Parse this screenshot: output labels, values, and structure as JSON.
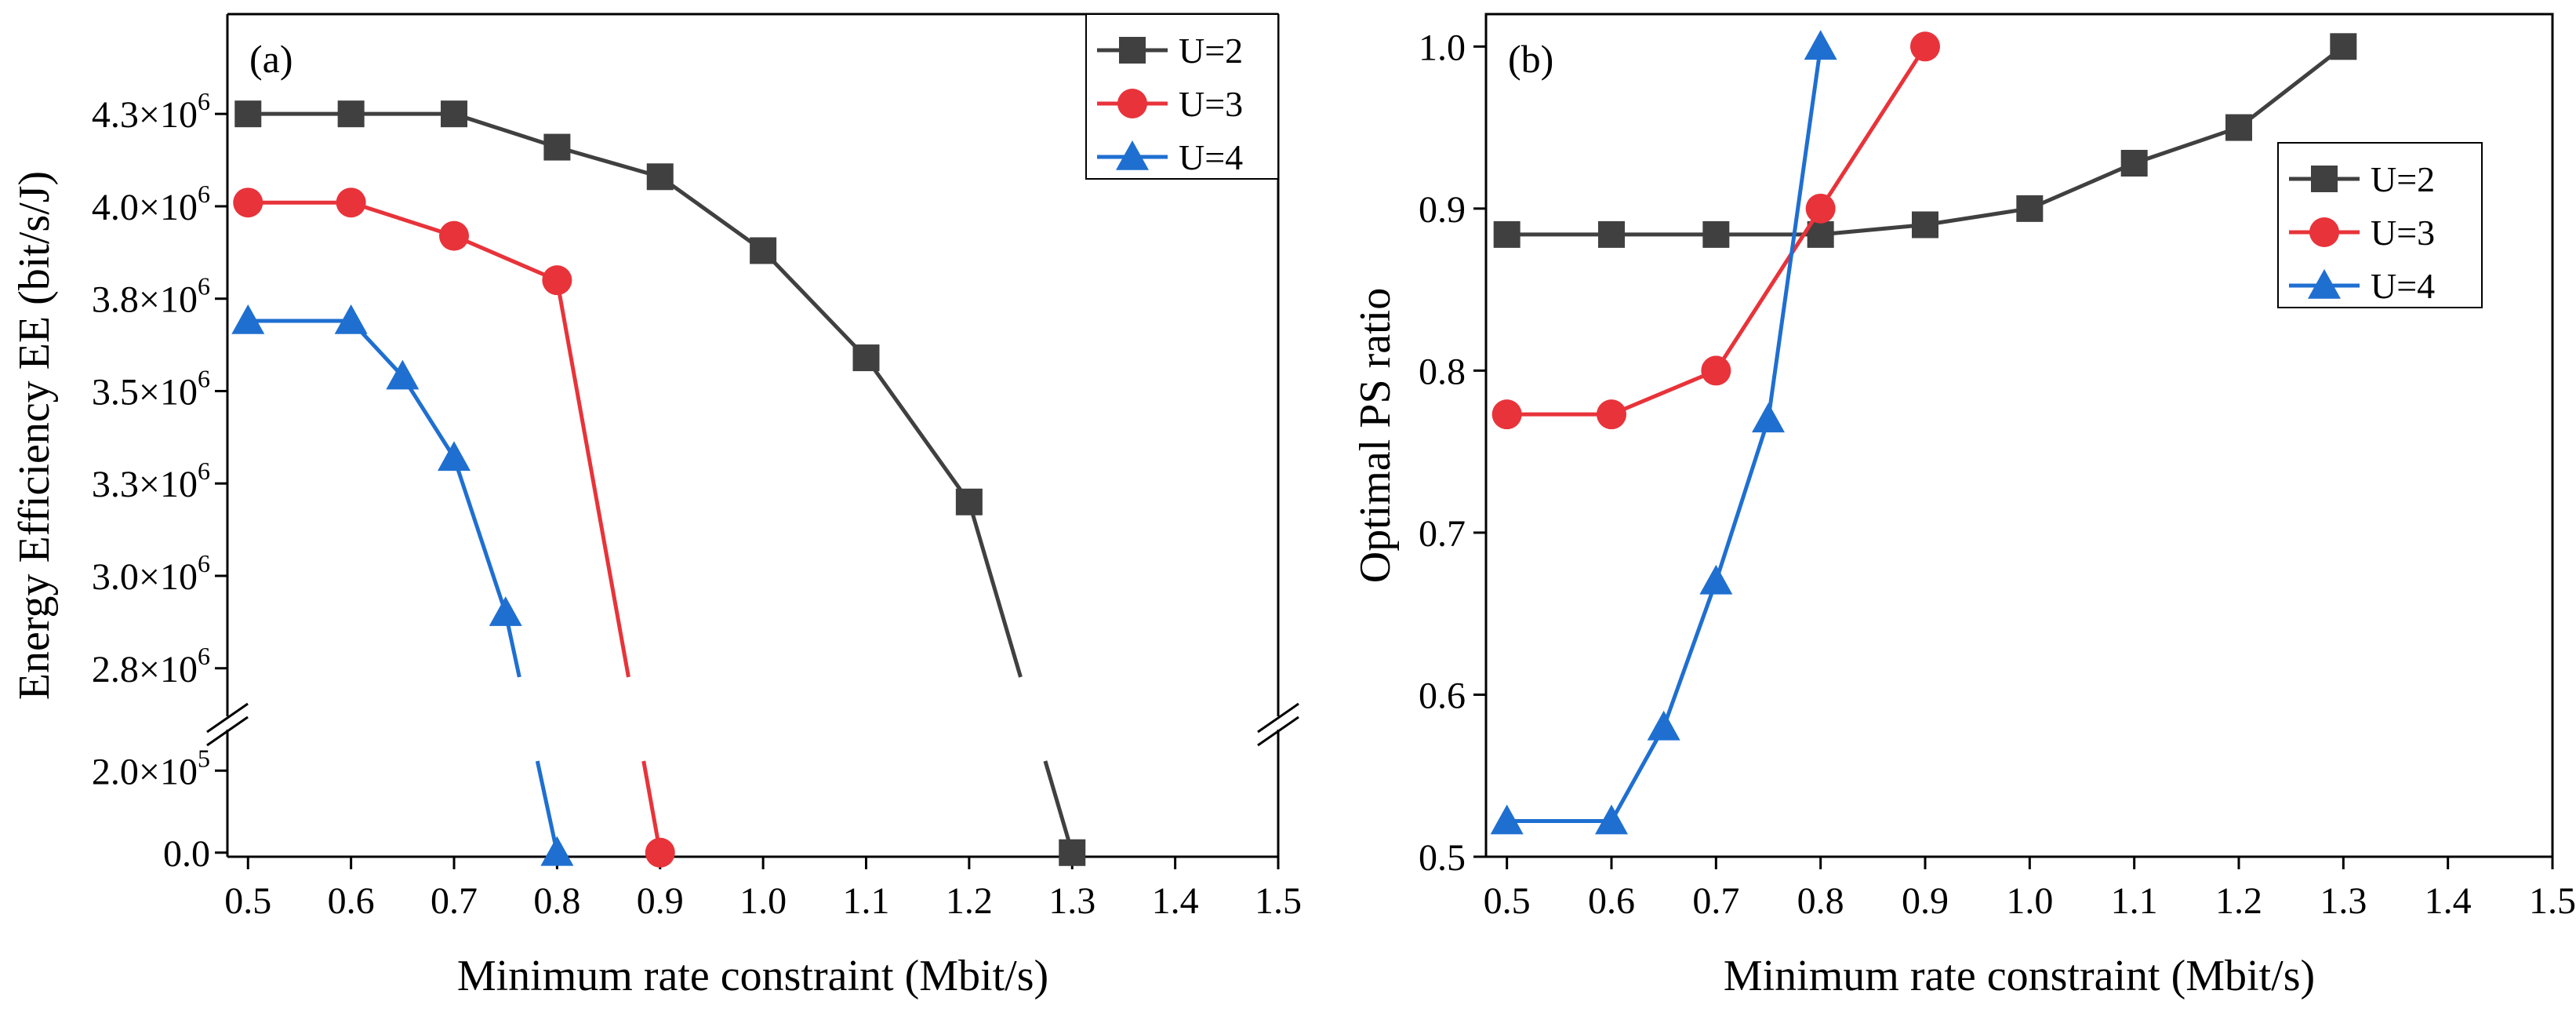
{
  "chart_data": [
    {
      "type": "line",
      "panel_label": "(a)",
      "xlabel": "Minimum rate constraint (Mbit/s)",
      "ylabel": "Energy Efficiency EE (bit/s/J)",
      "xlim": [
        0.48,
        1.5
      ],
      "x_ticks": [
        "0.5",
        "0.6",
        "0.7",
        "0.8",
        "0.9",
        "1.0",
        "1.1",
        "1.2",
        "1.3",
        "1.4",
        "1.5"
      ],
      "x_tick_values": [
        0.5,
        0.6,
        0.7,
        0.8,
        0.9,
        1.0,
        1.1,
        1.2,
        1.3,
        1.4,
        1.5
      ],
      "y_axis_break": true,
      "y_upper_range": [
        2620000,
        4520000
      ],
      "y_upper_ticks": [
        2750000,
        3000000,
        3250000,
        3500000,
        3750000,
        4000000,
        4250000
      ],
      "y_upper_tick_labels": [
        {
          "mantissa": "2.8×10",
          "exp": "6"
        },
        {
          "mantissa": "3.0×10",
          "exp": "6"
        },
        {
          "mantissa": "3.3×10",
          "exp": "6"
        },
        {
          "mantissa": "3.5×10",
          "exp": "6"
        },
        {
          "mantissa": "3.8×10",
          "exp": "6"
        },
        {
          "mantissa": "4.0×10",
          "exp": "6"
        },
        {
          "mantissa": "4.3×10",
          "exp": "6"
        }
      ],
      "y_lower_range": [
        -10000,
        300000
      ],
      "y_lower_ticks": [
        0,
        200000
      ],
      "y_lower_tick_labels": [
        {
          "mantissa": "0.0",
          "exp": ""
        },
        {
          "mantissa": "2.0×10",
          "exp": "5"
        }
      ],
      "legend_position": "top-right",
      "series": [
        {
          "name": "U=2",
          "color": "#404040",
          "marker": "square",
          "x": [
            0.5,
            0.6,
            0.7,
            0.8,
            0.9,
            1.0,
            1.1,
            1.2,
            1.3
          ],
          "values": [
            4250000,
            4250000,
            4250000,
            4160000,
            4080000,
            3880000,
            3590000,
            3200000,
            0
          ]
        },
        {
          "name": "U=3",
          "color": "#e8333a",
          "marker": "circle",
          "x": [
            0.5,
            0.6,
            0.7,
            0.8,
            0.9
          ],
          "values": [
            4010000,
            4010000,
            3920000,
            3800000,
            0
          ]
        },
        {
          "name": "U=4",
          "color": "#1f6fd1",
          "marker": "triangle",
          "x": [
            0.5,
            0.6,
            0.65,
            0.7,
            0.75,
            0.8
          ],
          "values": [
            3690000,
            3690000,
            3540000,
            3320000,
            2900000,
            0
          ]
        }
      ]
    },
    {
      "type": "line",
      "panel_label": "(b)",
      "xlabel": "Minimum rate constraint (Mbit/s)",
      "ylabel": "Optimal PS ratio",
      "xlim": [
        0.48,
        1.5
      ],
      "ylim": [
        0.5,
        1.02
      ],
      "x_ticks": [
        "0.5",
        "0.6",
        "0.7",
        "0.8",
        "0.9",
        "1.0",
        "1.1",
        "1.2",
        "1.3",
        "1.4",
        "1.5"
      ],
      "x_tick_values": [
        0.5,
        0.6,
        0.7,
        0.8,
        0.9,
        1.0,
        1.1,
        1.2,
        1.3,
        1.4,
        1.5
      ],
      "y_ticks": [
        "0.5",
        "0.6",
        "0.7",
        "0.8",
        "0.9",
        "1.0"
      ],
      "y_tick_values": [
        0.5,
        0.6,
        0.7,
        0.8,
        0.9,
        1.0
      ],
      "legend_position": "right",
      "series": [
        {
          "name": "U=2",
          "color": "#404040",
          "marker": "square",
          "x": [
            0.5,
            0.6,
            0.7,
            0.8,
            0.9,
            1.0,
            1.1,
            1.2,
            1.3
          ],
          "values": [
            0.884,
            0.884,
            0.884,
            0.884,
            0.89,
            0.9,
            0.928,
            0.95,
            1.0
          ]
        },
        {
          "name": "U=3",
          "color": "#e8333a",
          "marker": "circle",
          "x": [
            0.5,
            0.6,
            0.7,
            0.8,
            0.9
          ],
          "values": [
            0.773,
            0.773,
            0.8,
            0.9,
            1.0
          ]
        },
        {
          "name": "U=4",
          "color": "#1f6fd1",
          "marker": "triangle",
          "x": [
            0.5,
            0.6,
            0.65,
            0.7,
            0.75,
            0.8
          ],
          "values": [
            0.522,
            0.522,
            0.58,
            0.67,
            0.77,
            1.0
          ]
        }
      ]
    }
  ]
}
